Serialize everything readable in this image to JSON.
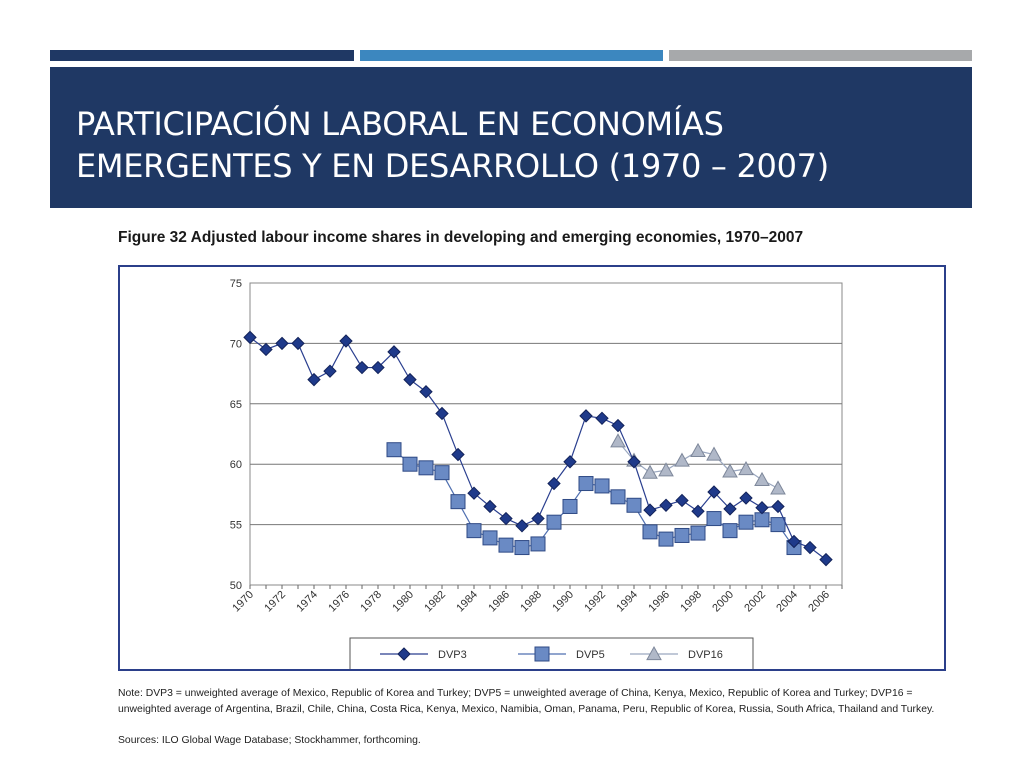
{
  "slide": {
    "title_line1": "PARTICIPACIÓN LABORAL EN ECONOMÍAS",
    "title_line2": "EMERGENTES Y EN DESARROLLO (1970 – 2007)"
  },
  "figure": {
    "title": "Figure 32  Adjusted labour income shares in developing and emerging economies, 1970–2007",
    "note": "Note: DVP3 = unweighted average of Mexico, Republic of Korea and Turkey; DVP5 = unweighted average of China, Kenya, Mexico, Republic of Korea and Turkey; DVP16 = unweighted average of Argentina, Brazil, Chile, China, Costa Rica, Kenya, Mexico, Namibia, Oman, Panama, Peru, Republic of Korea, Russia, South Africa, Thailand and Turkey.",
    "sources": "Sources: ILO Global Wage Database; Stockhammer, forthcoming."
  },
  "colors": {
    "header_navy": "#1f3864",
    "accent_blue": "#3c87bf",
    "accent_gray": "#a7a9ab",
    "dvp3": "#1f3a8a",
    "dvp5": "#6a8ac4",
    "dvp16": "#b0b8c8"
  },
  "chart_data": {
    "type": "line",
    "title": "",
    "xlabel": "",
    "ylabel": "",
    "ylim": [
      50,
      75
    ],
    "yticks": [
      50,
      55,
      60,
      65,
      70,
      75
    ],
    "xlim": [
      1970,
      2007
    ],
    "xticks": [
      "1970",
      "1972",
      "1974",
      "1976",
      "1978",
      "1980",
      "1982",
      "1984",
      "1986",
      "1988",
      "1990",
      "1992",
      "1994",
      "1996",
      "1998",
      "2000",
      "2002",
      "2004",
      "2006"
    ],
    "grid": true,
    "legend_position": "bottom",
    "series": [
      {
        "name": "DVP3",
        "marker": "diamond",
        "x": [
          1970,
          1971,
          1972,
          1973,
          1974,
          1975,
          1976,
          1977,
          1978,
          1979,
          1980,
          1981,
          1982,
          1983,
          1984,
          1985,
          1986,
          1987,
          1988,
          1989,
          1990,
          1991,
          1992,
          1993,
          1994,
          1995,
          1996,
          1997,
          1998,
          1999,
          2000,
          2001,
          2002,
          2003,
          2004,
          2005,
          2006
        ],
        "values": [
          70.5,
          69.5,
          70.0,
          70.0,
          67.0,
          67.7,
          70.2,
          68.0,
          68.0,
          69.3,
          67.0,
          66.0,
          64.2,
          60.8,
          57.6,
          56.5,
          55.5,
          54.9,
          55.5,
          58.4,
          60.2,
          64.0,
          63.8,
          63.2,
          60.2,
          56.2,
          56.6,
          57.0,
          56.1,
          57.7,
          56.3,
          57.2,
          56.4,
          56.5,
          53.6,
          53.1,
          52.1
        ]
      },
      {
        "name": "DVP5",
        "marker": "square",
        "x": [
          1979,
          1980,
          1981,
          1982,
          1983,
          1984,
          1985,
          1986,
          1987,
          1988,
          1989,
          1990,
          1991,
          1992,
          1993,
          1994,
          1995,
          1996,
          1997,
          1998,
          1999,
          2000,
          2001,
          2002,
          2003,
          2004
        ],
        "values": [
          61.2,
          60.0,
          59.7,
          59.3,
          56.9,
          54.5,
          53.9,
          53.3,
          53.1,
          53.4,
          55.2,
          56.5,
          58.4,
          58.2,
          57.3,
          56.6,
          54.4,
          53.8,
          54.1,
          54.3,
          55.5,
          54.5,
          55.2,
          55.4,
          55.0,
          53.1
        ]
      },
      {
        "name": "DVP16",
        "marker": "triangle",
        "x": [
          1993,
          1994,
          1995,
          1996,
          1997,
          1998,
          1999,
          2000,
          2001,
          2002,
          2003
        ],
        "values": [
          61.9,
          60.3,
          59.3,
          59.5,
          60.3,
          61.1,
          60.8,
          59.4,
          59.6,
          58.7,
          58.0
        ]
      }
    ]
  }
}
